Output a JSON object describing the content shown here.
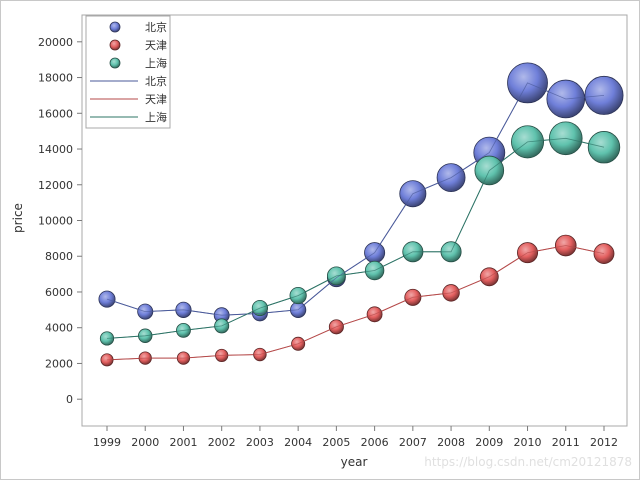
{
  "chart_data": {
    "type": "scatter",
    "subtype": "bubble-with-lines",
    "title": "",
    "xlabel": "year",
    "ylabel": "price",
    "x": [
      1999,
      2000,
      2001,
      2002,
      2003,
      2004,
      2005,
      2006,
      2007,
      2008,
      2009,
      2010,
      2011,
      2012
    ],
    "x_tick_labels": [
      "1999",
      "2000",
      "2001",
      "2002",
      "2003",
      "2004",
      "2005",
      "2006",
      "2007",
      "2008",
      "2009",
      "2010",
      "2011",
      "2012"
    ],
    "ylim": [
      -1500,
      21500
    ],
    "y_ticks": [
      0,
      2000,
      4000,
      6000,
      8000,
      10000,
      12000,
      14000,
      16000,
      18000,
      20000
    ],
    "y_tick_labels": [
      "0",
      "2000",
      "4000",
      "6000",
      "8000",
      "10000",
      "12000",
      "14000",
      "16000",
      "18000",
      "20000"
    ],
    "grid": false,
    "legend_position": "top-left-inside",
    "series": [
      {
        "name": "北京",
        "line_label": "北京",
        "color": "#6f7fd9",
        "line_color": "#4a5a9a",
        "values": [
          5600,
          4900,
          5000,
          4700,
          4800,
          5000,
          6800,
          8200,
          11500,
          12400,
          13800,
          17700,
          16800,
          17000
        ]
      },
      {
        "name": "天津",
        "line_label": "天津",
        "color": "#e35f5f",
        "line_color": "#b54a4a",
        "values": [
          2200,
          2300,
          2300,
          2450,
          2500,
          3100,
          4050,
          4750,
          5700,
          5950,
          6850,
          8200,
          8600,
          8150
        ]
      },
      {
        "name": "上海",
        "line_label": "上海",
        "color": "#5fc2ad",
        "line_color": "#2d7466",
        "values": [
          3400,
          3550,
          3850,
          4100,
          5100,
          5800,
          6900,
          7200,
          8250,
          8250,
          12800,
          14400,
          14600,
          14100
        ]
      }
    ]
  },
  "watermark": "https://blog.csdn.net/cm20121878"
}
